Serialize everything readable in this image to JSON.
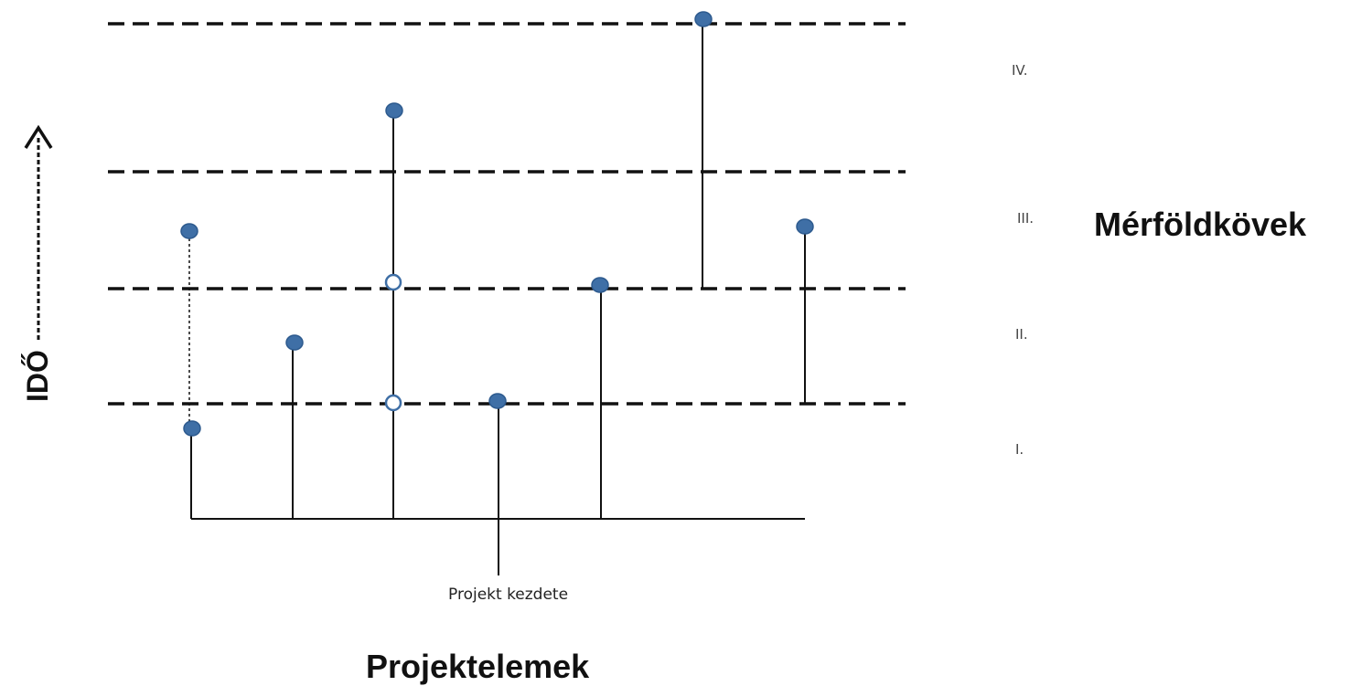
{
  "axis": {
    "time_label": "IDŐ"
  },
  "phases": [
    "I.",
    "II.",
    "III.",
    "IV."
  ],
  "milestones_label": "Mérföldkövek",
  "start_label": "Projekt kezdete",
  "elements_label": "Projektelemek",
  "colors": {
    "milestone": "#3f6fa6",
    "milestone_open": "#ffffff",
    "line": "#111111"
  }
}
